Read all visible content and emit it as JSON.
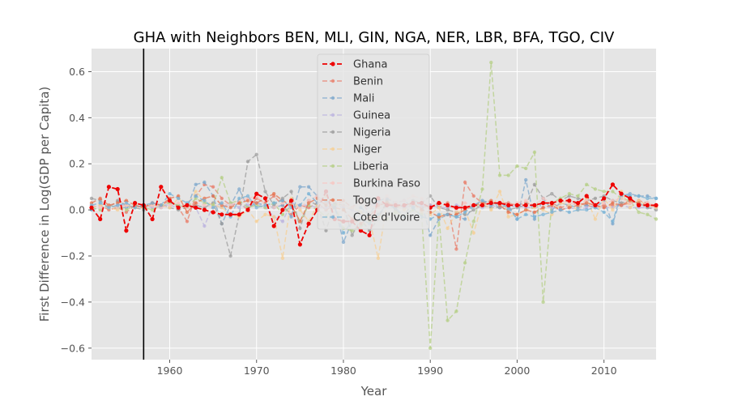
{
  "chart_data": {
    "type": "line",
    "title": "GHA with Neighbors BEN, MLI, GIN, NGA, NER, LBR, BFA, TGO, CIV",
    "xlabel": "Year",
    "ylabel": "First Difference in Log(GDP per Capita)",
    "xlim": [
      1951,
      2016
    ],
    "ylim": [
      -0.65,
      0.7
    ],
    "x_ticks": [
      1960,
      1970,
      1980,
      1990,
      2000,
      2010
    ],
    "y_ticks": [
      -0.6,
      -0.4,
      -0.2,
      0.0,
      0.2,
      0.4,
      0.6
    ],
    "x_tick_labels": [
      "1960",
      "1970",
      "1980",
      "1990",
      "2000",
      "2010"
    ],
    "y_tick_labels": [
      "−0.6",
      "−0.4",
      "−0.2",
      "0.0",
      "0.2",
      "0.4",
      "0.6"
    ],
    "vline_x": 1957,
    "grid": true,
    "legend_position": "top-center",
    "x": [
      1951,
      1952,
      1953,
      1954,
      1955,
      1956,
      1957,
      1958,
      1959,
      1960,
      1961,
      1962,
      1963,
      1964,
      1965,
      1966,
      1967,
      1968,
      1969,
      1970,
      1971,
      1972,
      1973,
      1974,
      1975,
      1976,
      1977,
      1978,
      1979,
      1980,
      1981,
      1982,
      1983,
      1984,
      1985,
      1986,
      1987,
      1988,
      1989,
      1990,
      1991,
      1992,
      1993,
      1994,
      1995,
      1996,
      1997,
      1998,
      1999,
      2000,
      2001,
      2002,
      2003,
      2004,
      2005,
      2006,
      2007,
      2008,
      2009,
      2010,
      2011,
      2012,
      2013,
      2014,
      2015,
      2016
    ],
    "series": [
      {
        "name": "Benin",
        "color": "#e8806e",
        "values": [
          0.01,
          0.02,
          0.0,
          0.01,
          -0.01,
          0.02,
          0.01,
          0.03,
          0.02,
          0.04,
          0.01,
          -0.05,
          0.06,
          0.11,
          0.1,
          0.05,
          0.02,
          0.03,
          0.0,
          0.05,
          0.03,
          0.06,
          0.02,
          -0.02,
          0.02,
          0.01,
          0.03,
          0.0,
          0.02,
          0.04,
          0.01,
          0.05,
          -0.02,
          -0.03,
          0.03,
          0.02,
          0.01,
          0.02,
          0.01,
          0.02,
          0.01,
          0.03,
          -0.17,
          0.12,
          0.06,
          0.03,
          0.02,
          0.03,
          0.03,
          0.02,
          0.03,
          0.02,
          0.03,
          0.03,
          0.01,
          0.02,
          0.03,
          0.02,
          0.01,
          0.02,
          0.02,
          0.02,
          0.03,
          0.04,
          0.03,
          0.01
        ]
      },
      {
        "name": "Mali",
        "color": "#7fa8cc",
        "values": [
          0.0,
          0.01,
          0.02,
          0.01,
          0.01,
          0.02,
          0.01,
          0.02,
          0.01,
          0.03,
          0.02,
          0.01,
          0.11,
          0.12,
          0.06,
          -0.06,
          0.02,
          0.09,
          0.01,
          0.03,
          0.02,
          0.01,
          0.02,
          -0.03,
          0.1,
          0.1,
          0.06,
          0.03,
          0.02,
          -0.14,
          -0.05,
          0.01,
          -0.02,
          0.04,
          0.05,
          0.03,
          0.04,
          0.01,
          0.03,
          -0.11,
          -0.04,
          -0.02,
          -0.03,
          -0.04,
          0.02,
          0.04,
          0.03,
          0.01,
          0.02,
          -0.04,
          0.13,
          -0.04,
          0.05,
          0.0,
          0.03,
          0.02,
          0.01,
          0.02,
          0.01,
          0.04,
          -0.06,
          0.06,
          0.07,
          0.06,
          0.06,
          0.05
        ]
      },
      {
        "name": "Guinea",
        "color": "#bcb4df",
        "values": [
          0.02,
          0.01,
          0.01,
          0.02,
          0.02,
          0.01,
          0.02,
          0.01,
          0.02,
          0.02,
          0.01,
          0.02,
          0.01,
          -0.07,
          0.02,
          0.01,
          0.03,
          0.01,
          0.02,
          0.03,
          0.01,
          -0.03,
          -0.05,
          0.03,
          0.02,
          0.02,
          0.01,
          0.01,
          0.02,
          0.01,
          0.0,
          -0.02,
          0.02,
          0.03,
          0.02,
          0.03,
          0.01,
          0.02,
          0.02,
          0.02,
          0.01,
          0.01,
          0.02,
          0.01,
          0.02,
          0.01,
          0.02,
          0.01,
          0.01,
          0.02,
          0.01,
          0.01,
          0.01,
          0.01,
          0.0,
          0.01,
          0.0,
          0.01,
          0.02,
          0.01,
          0.01,
          0.02,
          0.01,
          0.01,
          0.01,
          0.01
        ]
      },
      {
        "name": "Nigeria",
        "color": "#9e9e9e",
        "values": [
          0.05,
          0.04,
          0.01,
          0.04,
          0.02,
          0.01,
          0.0,
          0.03,
          0.02,
          0.01,
          0.0,
          0.01,
          0.02,
          0.01,
          0.03,
          -0.06,
          -0.2,
          -0.02,
          0.21,
          0.24,
          0.08,
          0.02,
          0.05,
          0.08,
          -0.08,
          0.04,
          0.02,
          -0.09,
          0.03,
          0.02,
          -0.11,
          -0.04,
          -0.09,
          -0.04,
          0.04,
          0.0,
          -0.03,
          0.04,
          0.03,
          0.06,
          0.01,
          0.0,
          -0.01,
          -0.02,
          0.0,
          0.02,
          0.01,
          0.01,
          0.0,
          0.01,
          0.02,
          0.11,
          0.05,
          0.07,
          0.04,
          0.06,
          0.05,
          0.04,
          0.05,
          0.06,
          0.04,
          0.03,
          0.04,
          0.03,
          0.01,
          0.0
        ]
      },
      {
        "name": "Niger",
        "color": "#f6cf96",
        "values": [
          0.01,
          0.02,
          0.01,
          0.0,
          0.02,
          0.01,
          0.01,
          0.02,
          0.02,
          0.01,
          0.05,
          0.02,
          0.08,
          0.04,
          0.02,
          0.01,
          -0.02,
          -0.03,
          0.0,
          -0.05,
          -0.02,
          -0.03,
          -0.21,
          0.05,
          0.0,
          -0.05,
          0.02,
          0.06,
          0.04,
          0.0,
          0.01,
          -0.01,
          -0.04,
          -0.21,
          0.03,
          0.02,
          0.0,
          0.03,
          -0.01,
          -0.02,
          0.01,
          -0.08,
          -0.01,
          0.0,
          -0.1,
          0.03,
          0.0,
          0.08,
          -0.03,
          -0.02,
          0.0,
          0.01,
          0.0,
          -0.02,
          0.03,
          0.02,
          0.0,
          0.05,
          -0.04,
          0.05,
          0.0,
          0.08,
          0.01,
          0.04,
          0.02,
          0.01
        ]
      },
      {
        "name": "Liberia",
        "color": "#b5cf87",
        "values": [
          0.01,
          0.0,
          0.02,
          0.01,
          0.0,
          0.02,
          0.01,
          0.0,
          0.02,
          0.03,
          0.02,
          0.01,
          0.05,
          0.03,
          0.02,
          0.14,
          0.03,
          0.04,
          0.01,
          0.02,
          0.01,
          0.03,
          -0.02,
          0.02,
          -0.05,
          0.02,
          0.0,
          -0.03,
          0.02,
          -0.08,
          -0.09,
          -0.07,
          -0.05,
          -0.02,
          -0.04,
          -0.01,
          -0.03,
          0.0,
          -0.02,
          -0.6,
          -0.03,
          -0.48,
          -0.44,
          -0.23,
          -0.05,
          0.09,
          0.64,
          0.15,
          0.15,
          0.19,
          0.18,
          0.25,
          -0.4,
          0.03,
          0.05,
          0.07,
          0.06,
          0.11,
          0.09,
          0.08,
          0.08,
          0.05,
          0.04,
          -0.01,
          -0.02,
          -0.04
        ]
      },
      {
        "name": "Burkina Faso",
        "color": "#f7c6c2",
        "values": [
          0.02,
          0.01,
          0.02,
          0.01,
          0.02,
          0.03,
          0.01,
          0.02,
          0.01,
          0.02,
          0.03,
          0.01,
          0.03,
          0.02,
          0.01,
          0.03,
          0.02,
          0.04,
          0.05,
          0.06,
          0.02,
          0.01,
          0.03,
          0.02,
          0.01,
          0.04,
          0.06,
          0.03,
          0.04,
          0.02,
          0.01,
          0.03,
          0.02,
          0.01,
          0.06,
          0.03,
          0.04,
          0.06,
          0.05,
          0.01,
          0.03,
          0.02,
          0.0,
          0.03,
          0.02,
          0.04,
          0.02,
          0.03,
          0.02,
          0.03,
          0.04,
          0.02,
          0.05,
          0.03,
          0.04,
          0.03,
          0.02,
          0.04,
          0.01,
          0.03,
          0.04,
          0.05,
          0.03,
          0.02,
          0.03,
          0.02
        ]
      },
      {
        "name": "Togo",
        "color": "#e6734f",
        "values": [
          0.03,
          0.05,
          0.02,
          0.03,
          0.04,
          0.02,
          0.01,
          0.03,
          0.02,
          0.05,
          0.06,
          -0.01,
          0.03,
          0.05,
          0.06,
          0.02,
          0.01,
          0.03,
          0.04,
          0.03,
          0.05,
          0.07,
          0.04,
          0.02,
          -0.05,
          0.03,
          0.05,
          0.02,
          0.01,
          0.0,
          -0.04,
          -0.06,
          -0.03,
          0.02,
          0.03,
          0.01,
          0.02,
          0.03,
          0.0,
          -0.01,
          -0.03,
          -0.02,
          -0.02,
          0.0,
          0.02,
          0.03,
          0.04,
          0.02,
          -0.01,
          -0.02,
          0.0,
          -0.01,
          0.01,
          0.02,
          0.0,
          0.01,
          0.02,
          0.03,
          0.02,
          0.01,
          0.03,
          0.02,
          0.04,
          0.03,
          0.02,
          0.02
        ]
      },
      {
        "name": "Cote d'Ivoire",
        "color": "#79b3d6",
        "values": [
          0.02,
          0.03,
          0.01,
          0.02,
          0.03,
          0.01,
          0.02,
          0.03,
          0.02,
          0.07,
          0.05,
          0.03,
          0.06,
          0.04,
          0.01,
          0.03,
          -0.03,
          0.05,
          0.06,
          0.01,
          0.02,
          0.03,
          0.04,
          0.01,
          0.02,
          0.07,
          0.03,
          0.04,
          0.01,
          -0.1,
          -0.05,
          -0.04,
          -0.06,
          -0.02,
          0.02,
          0.01,
          -0.03,
          0.01,
          -0.03,
          -0.04,
          -0.02,
          -0.02,
          -0.03,
          -0.01,
          0.02,
          0.04,
          0.02,
          0.03,
          0.01,
          -0.04,
          -0.02,
          -0.03,
          -0.02,
          -0.01,
          0.0,
          -0.01,
          0.0,
          0.0,
          0.01,
          -0.01,
          -0.05,
          0.07,
          0.06,
          0.06,
          0.05,
          0.05
        ]
      },
      {
        "name": "Ghana",
        "color": "#ee0000",
        "values": [
          0.01,
          -0.04,
          0.1,
          0.09,
          -0.09,
          0.03,
          0.02,
          -0.04,
          0.1,
          0.04,
          0.01,
          0.02,
          0.01,
          0.0,
          -0.01,
          -0.02,
          -0.02,
          -0.02,
          0.0,
          0.07,
          0.05,
          -0.07,
          0.0,
          0.04,
          -0.15,
          -0.06,
          0.0,
          0.08,
          -0.04,
          -0.05,
          -0.05,
          -0.09,
          -0.11,
          0.05,
          0.02,
          0.02,
          0.02,
          0.03,
          0.03,
          0.01,
          0.03,
          0.02,
          0.01,
          0.01,
          0.02,
          0.02,
          0.03,
          0.03,
          0.02,
          0.02,
          0.02,
          0.02,
          0.03,
          0.03,
          0.04,
          0.04,
          0.03,
          0.06,
          0.02,
          0.05,
          0.11,
          0.07,
          0.05,
          0.02,
          0.02,
          0.02
        ]
      }
    ]
  }
}
